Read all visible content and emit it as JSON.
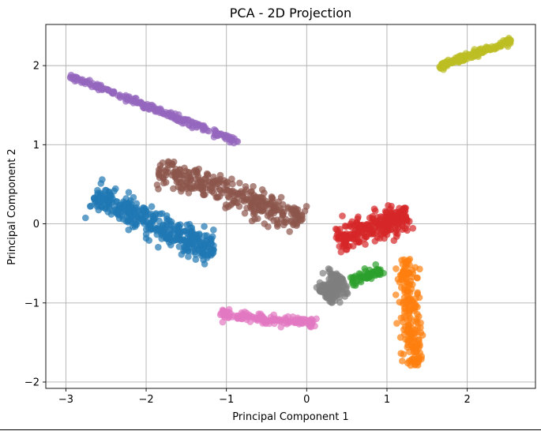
{
  "chart_data": {
    "type": "scatter",
    "title": "PCA - 2D Projection",
    "xlabel": "Principal Component 1",
    "ylabel": "Principal Component 2",
    "xlim": [
      -3.25,
      2.85
    ],
    "ylim": [
      -2.08,
      2.52
    ],
    "xticks": [
      -3,
      -2,
      -1,
      0,
      1,
      2
    ],
    "yticks": [
      -2,
      -1,
      0,
      1,
      2
    ],
    "xtick_labels": [
      "−3",
      "−2",
      "−1",
      "0",
      "1",
      "2"
    ],
    "ytick_labels": [
      "−2",
      "−1",
      "0",
      "1",
      "2"
    ],
    "grid": true,
    "legend": "none",
    "marker_alpha": 0.7,
    "series": [
      {
        "color": "#1f77b4",
        "center": [
          -1.9,
          0.0
        ],
        "direction": [
          0.905,
          -0.425
        ],
        "length": 1.65,
        "width": 0.17,
        "count": 380
      },
      {
        "color": "#ff7f0e",
        "center": [
          1.28,
          -1.12
        ],
        "direction": [
          0.105,
          -0.995
        ],
        "length": 1.35,
        "width": 0.12,
        "count": 200
      },
      {
        "color": "#2ca02c",
        "center": [
          0.75,
          -0.65
        ],
        "direction": [
          0.93,
          0.37
        ],
        "length": 0.42,
        "width": 0.07,
        "count": 60
      },
      {
        "color": "#d62728",
        "center": [
          0.82,
          -0.05
        ],
        "direction": [
          0.94,
          0.34
        ],
        "length": 0.95,
        "width": 0.17,
        "count": 260
      },
      {
        "color": "#9467bd",
        "center": [
          -1.9,
          1.45
        ],
        "direction": [
          0.93,
          -0.37
        ],
        "length": 2.25,
        "width": 0.04,
        "count": 220
      },
      {
        "color": "#8c564b",
        "center": [
          -0.95,
          0.37
        ],
        "direction": [
          0.94,
          -0.34
        ],
        "length": 1.9,
        "width": 0.17,
        "count": 320
      },
      {
        "color": "#e377c2",
        "center": [
          -0.48,
          -1.2
        ],
        "direction": [
          0.995,
          -0.1
        ],
        "length": 1.2,
        "width": 0.06,
        "count": 140
      },
      {
        "color": "#7f7f7f",
        "center": [
          0.33,
          -0.8
        ],
        "direction": [
          0.7,
          0.7
        ],
        "length": 0.32,
        "width": 0.16,
        "count": 160
      },
      {
        "color": "#bcbd22",
        "center": [
          2.1,
          2.15
        ],
        "direction": [
          0.94,
          0.34
        ],
        "length": 0.95,
        "width": 0.045,
        "count": 160
      }
    ]
  }
}
